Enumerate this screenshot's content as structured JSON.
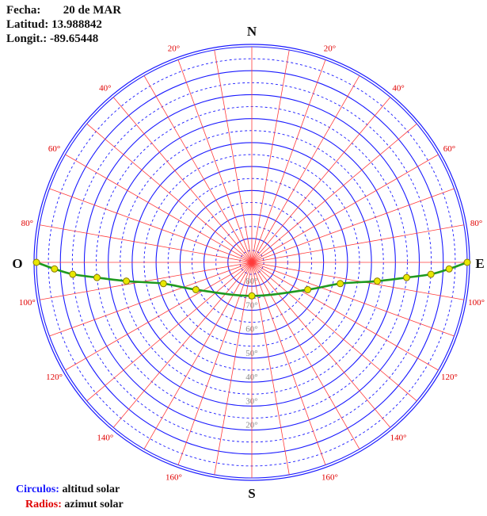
{
  "info": {
    "fecha_label": "Fecha:",
    "fecha": "20 de MAR",
    "latitud_label": "Latitud:",
    "latitud": "13.988842",
    "longitud_label": "Longit.:",
    "longitud": "-89.65448"
  },
  "legend": {
    "circulos": "Circulos:",
    "circulos_desc": "altitud solar",
    "radios": "Radios:",
    "radios_desc": "azimut solar"
  },
  "directions": {
    "north": "N",
    "south": "S",
    "east": "E",
    "west": "O"
  },
  "colors": {
    "circles": "#1a1aff",
    "radials": "#ff3b3b",
    "path": "#1f9a1f",
    "point": "#e8e800",
    "labels": "#e00000",
    "alt_labels": "#888888"
  },
  "azimuth_labels": [
    {
      "text": "160°",
      "az": 160
    },
    {
      "text": "160°",
      "az": -160
    },
    {
      "text": "140°",
      "az": 140
    },
    {
      "text": "140°",
      "az": -140
    },
    {
      "text": "120°",
      "az": 120
    },
    {
      "text": "120°",
      "az": -120
    },
    {
      "text": "100°",
      "az": 100
    },
    {
      "text": "100°",
      "az": -100
    },
    {
      "text": "80°",
      "az": 80
    },
    {
      "text": "80°",
      "az": -80
    },
    {
      "text": "60°",
      "az": 60
    },
    {
      "text": "60°",
      "az": -60
    },
    {
      "text": "40°",
      "az": 40
    },
    {
      "text": "40°",
      "az": -40
    },
    {
      "text": "20°",
      "az": 20
    },
    {
      "text": "20°",
      "az": -20
    }
  ],
  "altitude_labels": [
    {
      "text": "80°",
      "alt": 80
    },
    {
      "text": "70°",
      "alt": 70
    },
    {
      "text": "60°",
      "alt": 60
    },
    {
      "text": "50°",
      "alt": 50
    },
    {
      "text": "40°",
      "alt": 40
    },
    {
      "text": "30°",
      "alt": 30
    },
    {
      "text": "20°",
      "alt": 20
    }
  ],
  "sun_path": [
    {
      "az": 90.0,
      "alt": 0
    },
    {
      "az": 91.9,
      "alt": 7.5
    },
    {
      "az": 93.8,
      "alt": 15
    },
    {
      "az": 95.6,
      "alt": 25
    },
    {
      "az": 98.5,
      "alt": 37
    },
    {
      "az": 103.5,
      "alt": 52
    },
    {
      "az": 116.0,
      "alt": 64
    },
    {
      "az": 180.0,
      "alt": 76
    },
    {
      "az": 244.0,
      "alt": 64
    },
    {
      "az": 256.5,
      "alt": 52
    },
    {
      "az": 261.5,
      "alt": 37
    },
    {
      "az": 264.4,
      "alt": 25
    },
    {
      "az": 266.2,
      "alt": 15
    },
    {
      "az": 268.1,
      "alt": 7.5
    },
    {
      "az": 270.0,
      "alt": 0
    }
  ]
}
